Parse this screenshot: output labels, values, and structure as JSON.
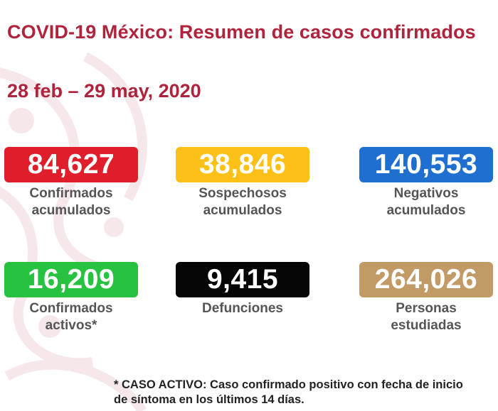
{
  "header": {
    "title": "COVID-19 México: Resumen de casos confirmados",
    "date_range": "28 feb – 29 may, 2020"
  },
  "cards": [
    {
      "value": "84,627",
      "line1": "Confirmados",
      "line2": "acumulados",
      "color": "#e01e2b"
    },
    {
      "value": "38,846",
      "line1": "Sospechosos",
      "line2": "acumulados",
      "color": "#fdc016"
    },
    {
      "value": "140,553",
      "line1": "Negativos",
      "line2": "acumulados",
      "color": "#1f6fd1"
    },
    {
      "value": "16,209",
      "line1": "Confirmados",
      "line2": "activos*",
      "color": "#27c23f"
    },
    {
      "value": "9,415",
      "line1": "Defunciones",
      "line2": "",
      "color": "#050505"
    },
    {
      "value": "264,026",
      "line1": "Personas",
      "line2": "estudiadas",
      "color": "#c29a65"
    }
  ],
  "footnote": {
    "line1": "* CASO ACTIVO: Caso confirmado positivo con fecha de inicio",
    "line2": "de síntoma en los últimos 14 días."
  },
  "colors": {
    "title": "#b0233c",
    "label": "#555555"
  }
}
